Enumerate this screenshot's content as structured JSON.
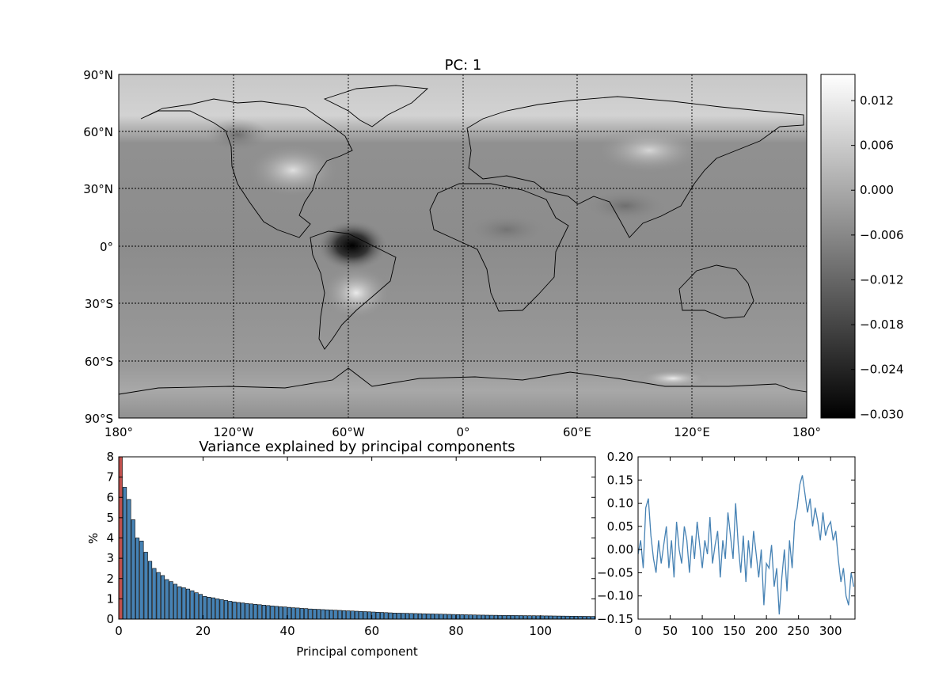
{
  "map": {
    "title": "PC: 1",
    "lat_labels": [
      "90°N",
      "60°N",
      "30°N",
      "0°",
      "30°S",
      "60°S",
      "90°S"
    ],
    "lon_labels": [
      "180°",
      "120°W",
      "60°W",
      "0°",
      "60°E",
      "120°E",
      "180°"
    ],
    "colormap": "gray",
    "notable_features": "strong negative minimum over northern South America near 60°W, 0°"
  },
  "colorbar": {
    "ticks": [
      "0.012",
      "0.006",
      "0.000",
      "−0.006",
      "−0.012",
      "−0.018",
      "−0.024",
      "−0.030"
    ]
  },
  "chart_data": [
    {
      "type": "bar",
      "title": "Variance explained by principal components",
      "xlabel": "Principal component",
      "ylabel": "%",
      "xlim": [
        0,
        113
      ],
      "ylim": [
        0,
        8
      ],
      "x_ticks": [
        "0",
        "20",
        "40",
        "60",
        "80",
        "100"
      ],
      "y_ticks": [
        "0",
        "1",
        "2",
        "3",
        "4",
        "5",
        "6",
        "7",
        "8"
      ],
      "bar_color": "#4682b4",
      "highlight_color": "#c0504d",
      "highlight": {
        "x": 0,
        "value": 8.0
      },
      "values": [
        6.5,
        5.9,
        4.9,
        4.0,
        3.85,
        3.3,
        2.85,
        2.5,
        2.3,
        2.15,
        1.95,
        1.85,
        1.72,
        1.6,
        1.55,
        1.48,
        1.4,
        1.3,
        1.22,
        1.12,
        1.08,
        1.05,
        1.0,
        0.96,
        0.92,
        0.88,
        0.85,
        0.82,
        0.8,
        0.77,
        0.75,
        0.73,
        0.71,
        0.69,
        0.67,
        0.65,
        0.63,
        0.61,
        0.6,
        0.58,
        0.56,
        0.55,
        0.53,
        0.52,
        0.5,
        0.49,
        0.48,
        0.47,
        0.46,
        0.45,
        0.44,
        0.43,
        0.42,
        0.41,
        0.4,
        0.39,
        0.38,
        0.37,
        0.36,
        0.35,
        0.34,
        0.33,
        0.32,
        0.31,
        0.3,
        0.295,
        0.29,
        0.285,
        0.28,
        0.275,
        0.27,
        0.265,
        0.26,
        0.255,
        0.25,
        0.245,
        0.24,
        0.235,
        0.23,
        0.225,
        0.22,
        0.215,
        0.21,
        0.205,
        0.2,
        0.198,
        0.195,
        0.192,
        0.19,
        0.187,
        0.185,
        0.182,
        0.18,
        0.178,
        0.175,
        0.172,
        0.17,
        0.168,
        0.165,
        0.162,
        0.16,
        0.158,
        0.155,
        0.152,
        0.15,
        0.148,
        0.145,
        0.142,
        0.14,
        0.138,
        0.135,
        0.132
      ]
    },
    {
      "type": "line",
      "xlim": [
        0,
        338
      ],
      "ylim": [
        -0.15,
        0.2
      ],
      "x_ticks": [
        "0",
        "50",
        "100",
        "150",
        "200",
        "250",
        "300"
      ],
      "y_ticks": [
        "0.20",
        "0.15",
        "0.10",
        "0.05",
        "0.00",
        "−0.05",
        "−0.10",
        "−0.15"
      ],
      "line_color": "#4682b4",
      "x": [
        0,
        4,
        8,
        12,
        16,
        20,
        24,
        28,
        32,
        36,
        40,
        44,
        48,
        52,
        56,
        60,
        64,
        68,
        72,
        76,
        80,
        84,
        88,
        92,
        96,
        100,
        104,
        108,
        112,
        116,
        120,
        124,
        128,
        132,
        136,
        140,
        144,
        148,
        152,
        156,
        160,
        164,
        168,
        172,
        176,
        180,
        184,
        188,
        192,
        196,
        200,
        204,
        208,
        212,
        216,
        220,
        224,
        228,
        232,
        236,
        240,
        244,
        248,
        252,
        256,
        260,
        264,
        268,
        272,
        276,
        280,
        284,
        288,
        292,
        296,
        300,
        304,
        308,
        312,
        316,
        320,
        324,
        328,
        332,
        336
      ],
      "y": [
        -0.01,
        0.02,
        -0.04,
        0.09,
        0.11,
        0.03,
        -0.02,
        -0.05,
        0.02,
        -0.03,
        0.01,
        0.05,
        -0.04,
        0.02,
        -0.06,
        0.06,
        0.0,
        -0.03,
        0.05,
        0.02,
        -0.05,
        0.03,
        -0.02,
        0.06,
        0.01,
        -0.04,
        0.02,
        -0.01,
        0.07,
        -0.03,
        0.01,
        0.04,
        -0.06,
        0.02,
        -0.02,
        0.08,
        0.03,
        -0.02,
        0.1,
        0.01,
        -0.05,
        0.03,
        -0.07,
        0.02,
        -0.04,
        0.04,
        -0.01,
        -0.06,
        0.0,
        -0.12,
        -0.03,
        -0.04,
        0.01,
        -0.08,
        -0.04,
        -0.14,
        -0.06,
        0.0,
        -0.09,
        0.02,
        -0.04,
        0.06,
        0.09,
        0.14,
        0.16,
        0.12,
        0.08,
        0.11,
        0.05,
        0.09,
        0.06,
        0.02,
        0.08,
        0.03,
        0.05,
        0.06,
        0.02,
        0.04,
        -0.02,
        -0.07,
        -0.04,
        -0.1,
        -0.12,
        -0.05,
        -0.08
      ]
    }
  ]
}
